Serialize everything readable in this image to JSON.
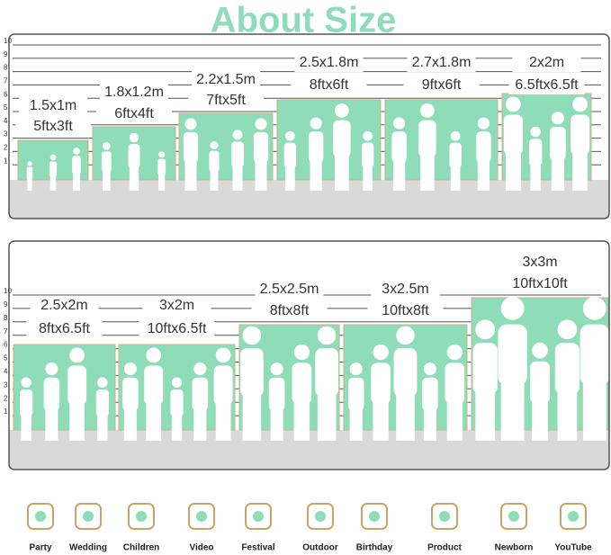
{
  "title": "About Size",
  "panels": [
    {
      "scale": [
        "10",
        "9",
        "8",
        "7",
        "6",
        "5",
        "4",
        "3",
        "2",
        "1"
      ],
      "items": [
        {
          "metric": "1.5x1m",
          "imperial": "5ftx3ft"
        },
        {
          "metric": "1.8x1.2m",
          "imperial": "6ftx4ft"
        },
        {
          "metric": "2.2x1.5m",
          "imperial": "7ftx5ft"
        },
        {
          "metric": "2.5x1.8m",
          "imperial": "8ftx6ft"
        },
        {
          "metric": "2.7x1.8m",
          "imperial": "9ftx6ft"
        },
        {
          "metric": "2x2m",
          "imperial": "6.5ftx6.5ft"
        }
      ]
    },
    {
      "scale": [
        "10",
        "9",
        "8",
        "7",
        "6",
        "5",
        "4",
        "3",
        "2",
        "1"
      ],
      "items": [
        {
          "metric": "2.5x2m",
          "imperial": "8ftx6.5ft"
        },
        {
          "metric": "3x2m",
          "imperial": "10ftx6.5ft"
        },
        {
          "metric": "2.5x2.5m",
          "imperial": "8ftx8ft"
        },
        {
          "metric": "3x2.5m",
          "imperial": "10ftx8ft"
        },
        {
          "metric": "3x3m",
          "imperial": "10ftx10ft"
        }
      ]
    }
  ],
  "uses": [
    "Party",
    "Wedding",
    "Children",
    "Video",
    "Festival",
    "Outdoor",
    "Birthday",
    "Product",
    "Newborn",
    "YouTube"
  ]
}
